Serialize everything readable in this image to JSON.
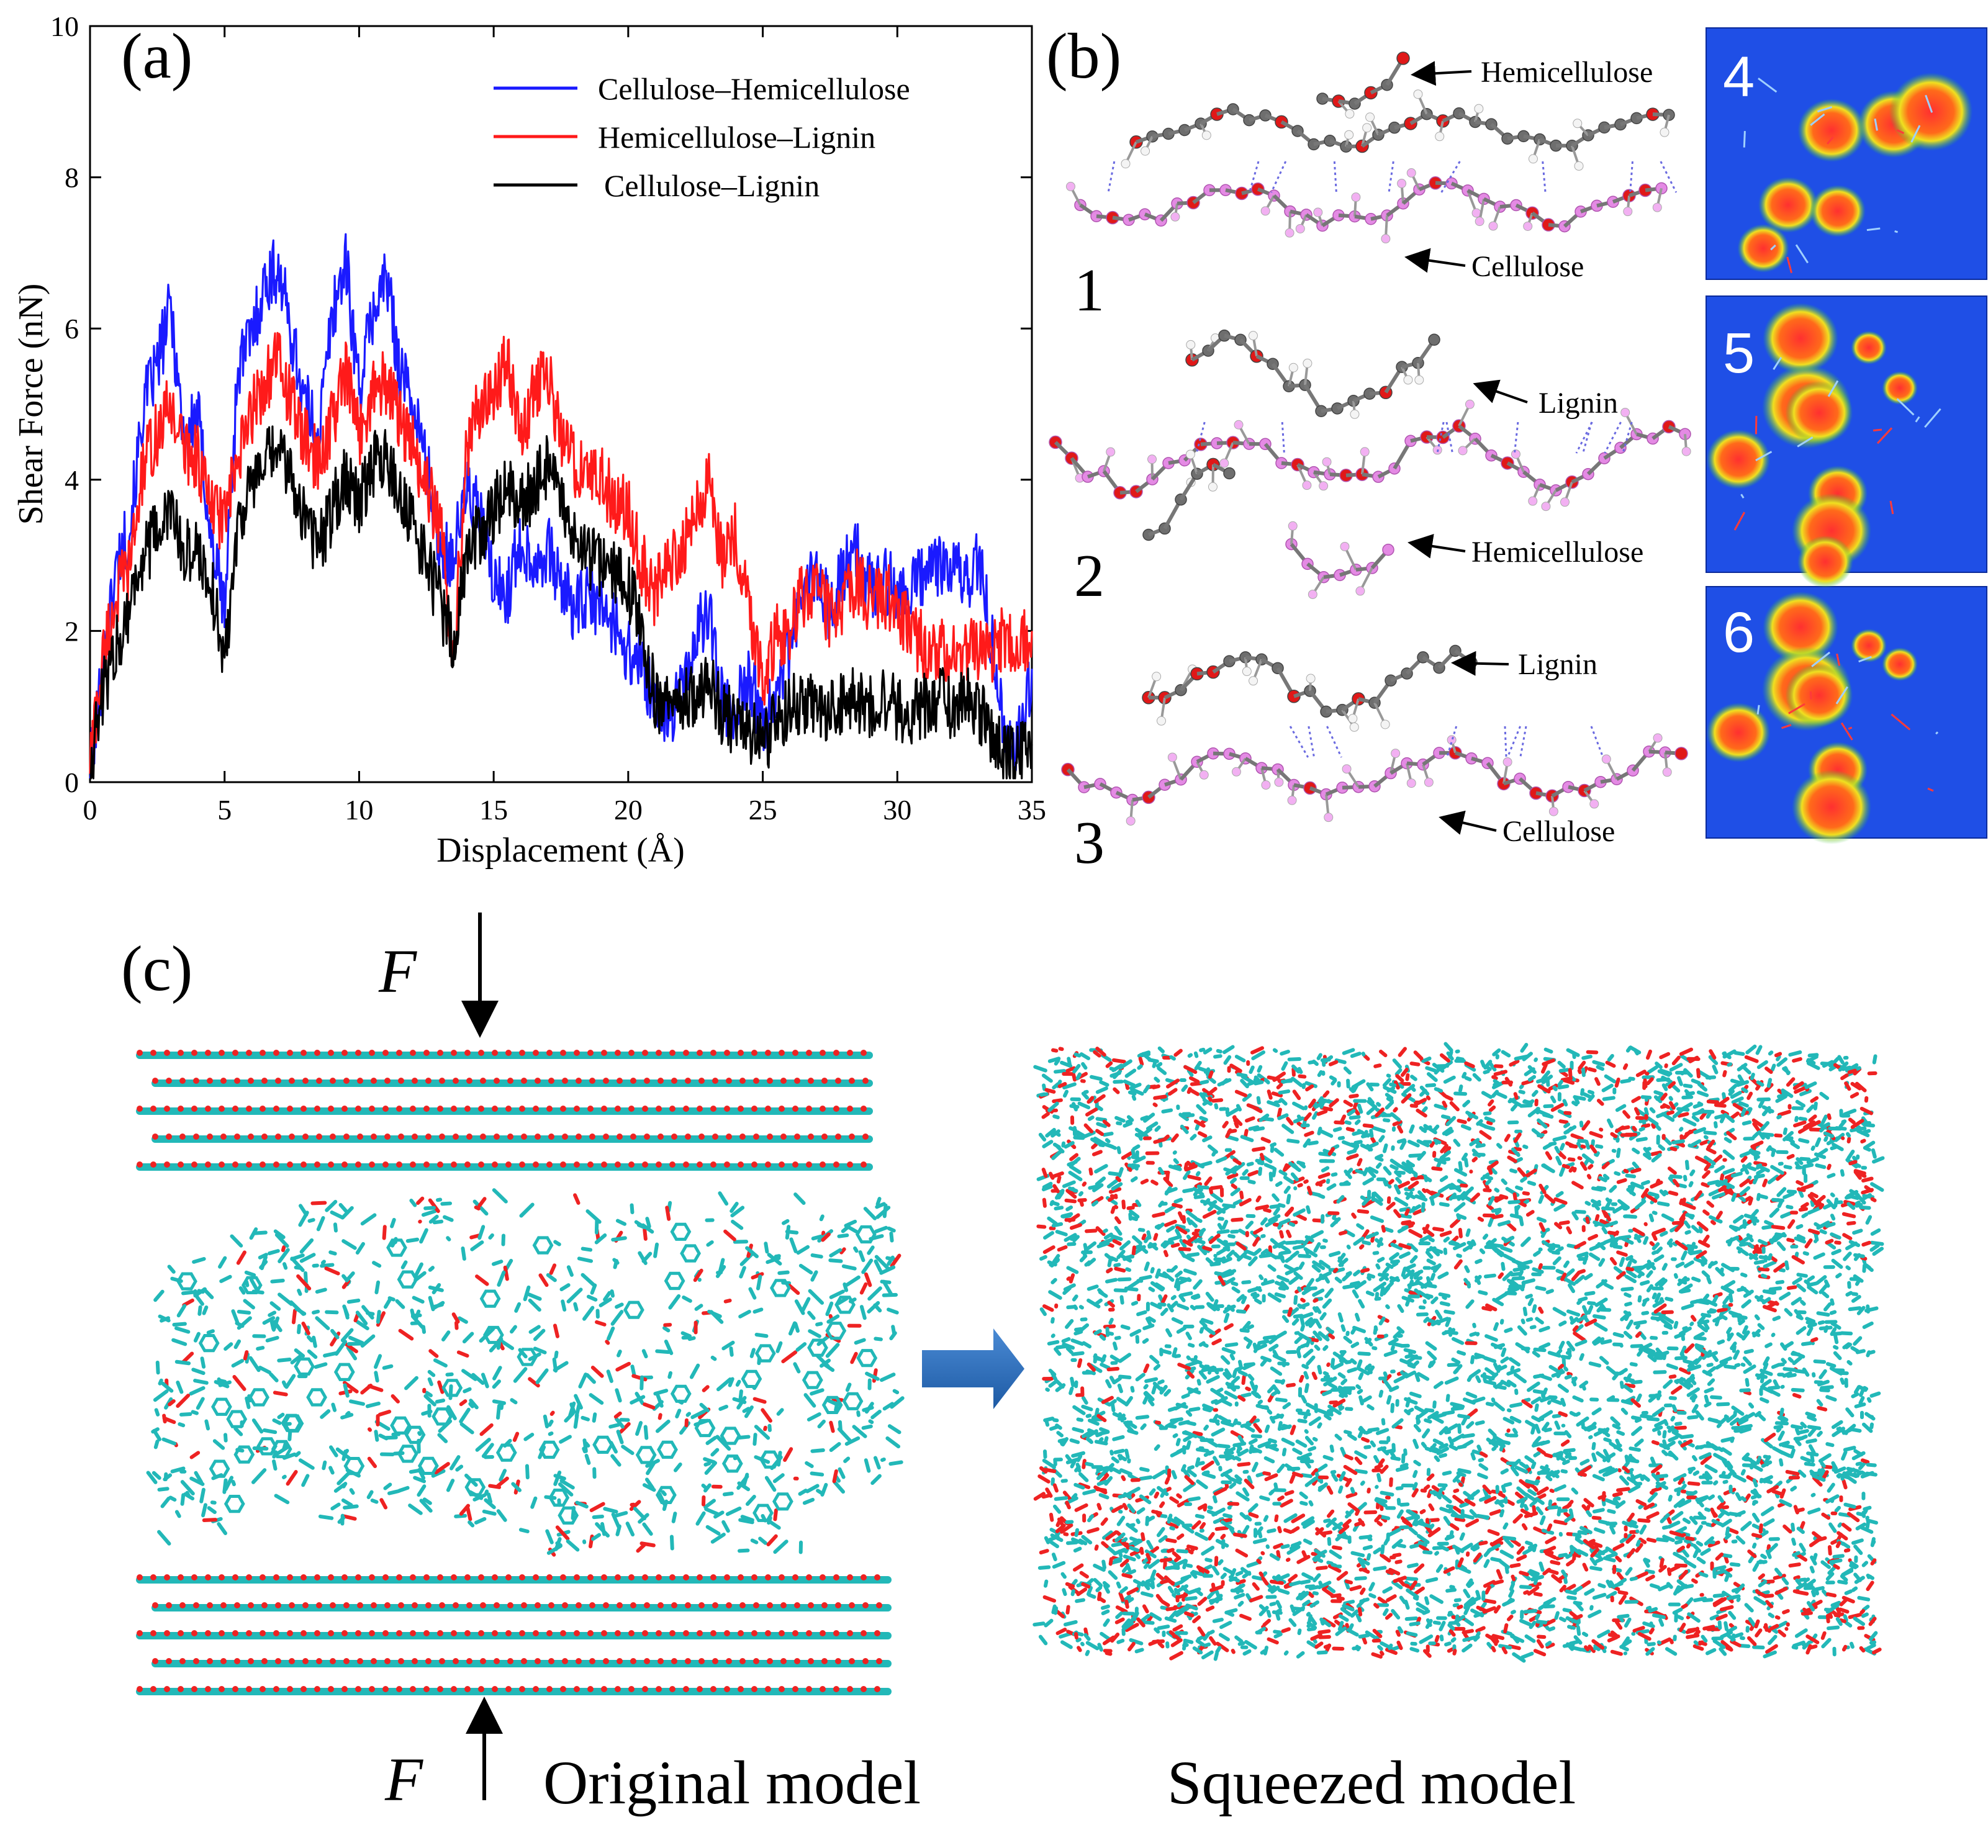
{
  "panel_a": {
    "label": "(a)",
    "chart_data": {
      "type": "line",
      "title": "",
      "xlabel": "Displacement (Å)",
      "ylabel": "Shear Force (nN)",
      "xlim": [
        0,
        35
      ],
      "ylim": [
        0,
        10
      ],
      "xticks": [
        0,
        5,
        10,
        15,
        20,
        25,
        30,
        35
      ],
      "yticks": [
        0,
        2,
        4,
        6,
        8,
        10
      ],
      "grid": false,
      "legend": "top-right",
      "series": [
        {
          "name": "Cellulose–Hemicellulose",
          "color": "#1a1aff",
          "x": [
            0,
            0.5,
            1,
            1.5,
            2,
            2.5,
            3,
            3.5,
            4,
            4.5,
            5,
            5.5,
            6,
            6.5,
            7,
            7.5,
            8,
            8.5,
            9,
            9.5,
            10,
            10.5,
            11,
            11.5,
            12,
            12.5,
            13,
            13.5,
            14,
            14.5,
            15,
            15.5,
            16,
            16.5,
            17,
            17.5,
            18,
            18.5,
            19,
            19.5,
            20,
            20.5,
            21,
            21.5,
            22,
            22.5,
            23,
            23.5,
            24,
            24.5,
            25,
            25.5,
            26,
            26.5,
            27,
            27.5,
            28,
            28.5,
            29,
            29.5,
            30,
            30.5,
            31,
            31.5,
            32,
            32.5,
            33,
            33.5,
            34,
            34.5,
            35
          ],
          "values": [
            0.1,
            1.6,
            2.9,
            3.4,
            5.0,
            5.5,
            6.3,
            4.5,
            4.9,
            3.2,
            2.3,
            5.5,
            5.9,
            6.6,
            6.8,
            5.9,
            5.0,
            4.6,
            6.2,
            6.9,
            5.2,
            6.2,
            6.7,
            5.5,
            5.0,
            4.2,
            3.1,
            3.0,
            3.9,
            3.5,
            2.6,
            2.5,
            3.2,
            2.9,
            3.1,
            2.6,
            2.3,
            2.4,
            2.3,
            2.1,
            1.7,
            1.6,
            0.9,
            0.9,
            1.2,
            1.9,
            2.3,
            1.0,
            1.0,
            1.4,
            0.8,
            1.3,
            1.7,
            2.6,
            2.7,
            2.3,
            2.8,
            3.0,
            2.6,
            2.7,
            2.5,
            2.5,
            2.8,
            2.9,
            2.9,
            2.6,
            3.0,
            1.9,
            0.7,
            0.5,
            1.5
          ]
        },
        {
          "name": "Hemicellulose–Lignin",
          "color": "#ff1a1a",
          "x": [
            0,
            0.5,
            1,
            1.5,
            2,
            2.5,
            3,
            3.5,
            4,
            4.5,
            5,
            5.5,
            6,
            6.5,
            7,
            7.5,
            8,
            8.5,
            9,
            9.5,
            10,
            10.5,
            11,
            11.5,
            12,
            12.5,
            13,
            13.5,
            14,
            14.5,
            15,
            15.5,
            16,
            16.5,
            17,
            17.5,
            18,
            18.5,
            19,
            19.5,
            20,
            20.5,
            21,
            21.5,
            22,
            22.5,
            23,
            23.5,
            24,
            24.5,
            25,
            25.5,
            26,
            26.5,
            27,
            27.5,
            28,
            28.5,
            29,
            29.5,
            30,
            30.5,
            31,
            31.5,
            32,
            32.5,
            33,
            33.5,
            34,
            34.5,
            35
          ],
          "values": [
            0.3,
            1.7,
            2.5,
            2.9,
            4.2,
            4.6,
            5.0,
            4.4,
            4.3,
            3.6,
            3.5,
            4.2,
            4.9,
            5.3,
            5.6,
            5.0,
            4.5,
            4.2,
            4.8,
            5.4,
            4.6,
            5.2,
            5.3,
            4.8,
            4.4,
            3.9,
            3.4,
            1.7,
            4.4,
            5.0,
            5.1,
            5.7,
            4.5,
            5.2,
            5.4,
            4.6,
            4.2,
            4.1,
            4.0,
            3.7,
            3.6,
            2.9,
            2.5,
            2.9,
            3.1,
            3.6,
            3.9,
            3.0,
            3.3,
            2.3,
            1.4,
            1.9,
            2.0,
            2.5,
            2.6,
            2.2,
            2.3,
            2.7,
            2.4,
            2.5,
            2.3,
            2.0,
            1.8,
            1.7,
            1.8,
            1.7,
            1.8,
            1.7,
            1.9,
            1.8,
            2.0
          ]
        },
        {
          "name": "Cellulose–Lignin",
          "color": "#000000",
          "x": [
            0,
            0.5,
            1,
            1.5,
            2,
            2.5,
            3,
            3.5,
            4,
            4.5,
            5,
            5.5,
            6,
            6.5,
            7,
            7.5,
            8,
            8.5,
            9,
            9.5,
            10,
            10.5,
            11,
            11.5,
            12,
            12.5,
            13,
            13.5,
            14,
            14.5,
            15,
            15.5,
            16,
            16.5,
            17,
            17.5,
            18,
            18.5,
            19,
            19.5,
            20,
            20.5,
            21,
            21.5,
            22,
            22.5,
            23,
            23.5,
            24,
            24.5,
            25,
            25.5,
            26,
            26.5,
            27,
            27.5,
            28,
            28.5,
            29,
            29.5,
            30,
            30.5,
            31,
            31.5,
            32,
            32.5,
            33,
            33.5,
            34,
            34.5,
            35
          ],
          "values": [
            0.2,
            1.2,
            1.8,
            2.4,
            3.0,
            3.3,
            3.6,
            3.0,
            3.1,
            2.6,
            1.6,
            3.5,
            3.9,
            4.2,
            4.4,
            4.0,
            3.5,
            3.1,
            3.6,
            4.1,
            3.7,
            4.2,
            4.3,
            3.8,
            3.4,
            2.9,
            2.4,
            1.8,
            3.0,
            3.3,
            3.6,
            3.9,
            3.6,
            3.9,
            4.2,
            3.6,
            3.2,
            3.0,
            2.9,
            2.8,
            2.6,
            2.0,
            1.1,
            1.0,
            1.0,
            1.2,
            1.3,
            0.9,
            0.8,
            0.7,
            0.5,
            0.8,
            1.0,
            1.1,
            1.0,
            0.9,
            1.0,
            1.1,
            1.0,
            1.1,
            1.0,
            0.9,
            1.0,
            1.1,
            1.0,
            1.1,
            1.0,
            0.6,
            0.3,
            0.3,
            0.5
          ]
        }
      ]
    }
  },
  "panel_b": {
    "label": "(b)",
    "rows": [
      {
        "num": "1",
        "top_label": "Hemicellulose",
        "bottom_label": "Cellulose"
      },
      {
        "num": "2",
        "top_label": "Lignin",
        "bottom_label": "Hemicellulose"
      },
      {
        "num": "3",
        "top_label": "Lignin",
        "bottom_label": "Cellulose"
      }
    ],
    "density_tiles": [
      "4",
      "5",
      "6"
    ]
  },
  "panel_c": {
    "label": "(c)",
    "force_label": "F",
    "original_caption": "Original model",
    "squeezed_caption": "Squeezed model"
  },
  "colors": {
    "cyan_atoms": "#22b8b8",
    "oxygen_atoms": "#ee2222",
    "tile_background": "#1f4fe6",
    "arrow_blue": "#2f72c0"
  }
}
